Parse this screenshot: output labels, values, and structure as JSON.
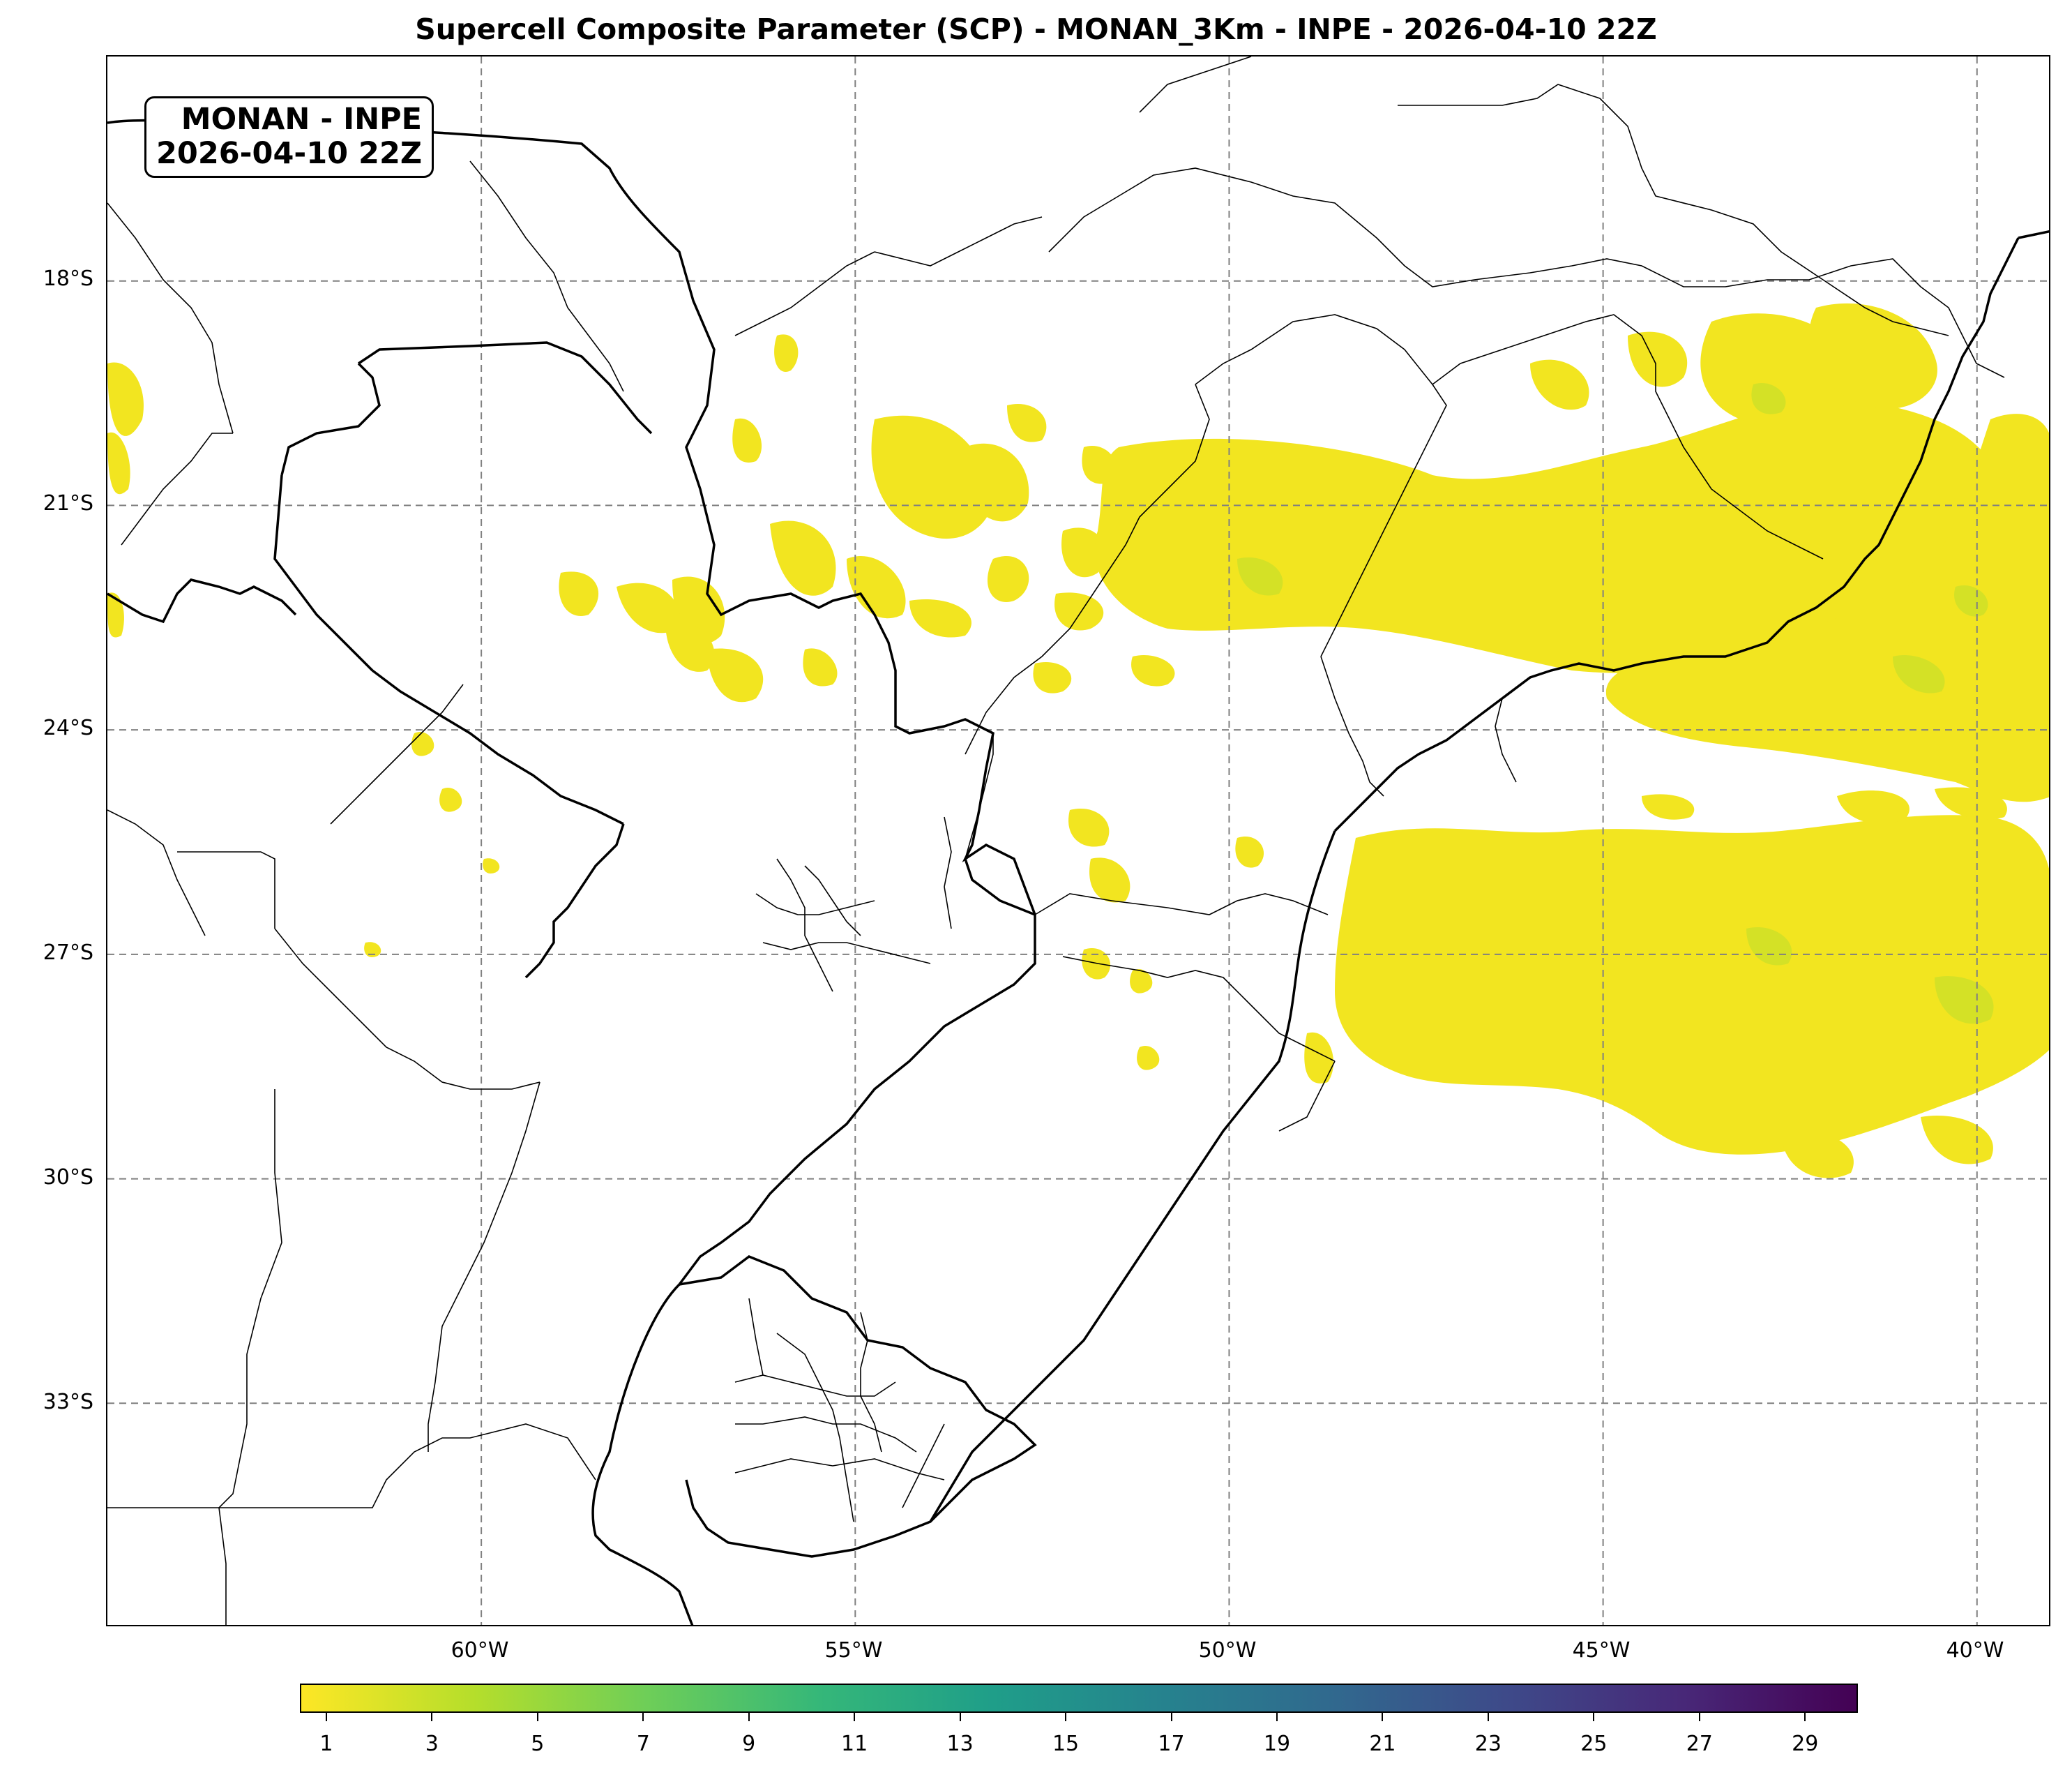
{
  "title": "Supercell Composite Parameter (SCP) - MONAN_3Km - INPE - 2026-04-10 22Z",
  "stamp": {
    "line1": "MONAN - INPE",
    "line2": "2026-04-10 22Z"
  },
  "map": {
    "extent": {
      "lon_min": -65,
      "lon_max": -39,
      "lat_min": -36,
      "lat_max": -15
    },
    "lat_gridlines": [
      -18,
      -21,
      -24,
      -27,
      -30,
      -33
    ],
    "lon_gridlines": [
      -60,
      -55,
      -50,
      -45,
      -40
    ],
    "lat_labels": [
      "18°S",
      "21°S",
      "24°S",
      "27°S",
      "30°S",
      "33°S"
    ],
    "lon_labels": [
      "60°W",
      "55°W",
      "50°W",
      "45°W",
      "40°W"
    ],
    "gridline_color": "#808080",
    "field_color": "#f2e520",
    "field_color_strong": "#c8df2a"
  },
  "colorbar": {
    "min": 0.5,
    "max": 30,
    "ticks": [
      "1",
      "3",
      "5",
      "7",
      "9",
      "11",
      "13",
      "15",
      "17",
      "19",
      "21",
      "23",
      "25",
      "27",
      "29"
    ],
    "tick_values": [
      1,
      3,
      5,
      7,
      9,
      11,
      13,
      15,
      17,
      19,
      21,
      23,
      25,
      27,
      29
    ],
    "colormap": "viridis_r",
    "colors": [
      "#fde725",
      "#b5de2b",
      "#6ece58",
      "#35b779",
      "#1f9e89",
      "#26828e",
      "#31688e",
      "#3e4989",
      "#482878",
      "#440154"
    ]
  }
}
